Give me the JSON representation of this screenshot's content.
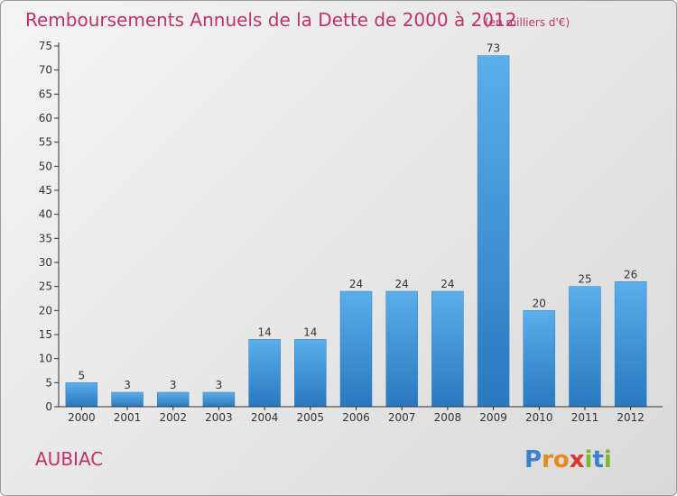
{
  "chart_data": {
    "type": "bar",
    "title": "Remboursements Annuels de la Dette de 2000 à 2012",
    "subtitle": "(en milliers d'€)",
    "categories": [
      "2000",
      "2001",
      "2002",
      "2003",
      "2004",
      "2005",
      "2006",
      "2007",
      "2008",
      "2009",
      "2010",
      "2011",
      "2012"
    ],
    "values": [
      5,
      3,
      3,
      3,
      14,
      14,
      24,
      24,
      24,
      73,
      20,
      25,
      26
    ],
    "ylim": [
      0,
      75
    ],
    "yticks": [
      0,
      5,
      10,
      15,
      20,
      25,
      30,
      35,
      40,
      45,
      50,
      55,
      60,
      65,
      70,
      75
    ],
    "grid": false,
    "legend": "none",
    "bar_color": "#4aa0de"
  },
  "footer": {
    "commune": "AUBIAC",
    "logo": "Proxiti",
    "logo_letters": [
      {
        "ch": "P",
        "color": "#3a7fd0"
      },
      {
        "ch": "r",
        "color": "#e88a1a"
      },
      {
        "ch": "o",
        "color": "#e88a1a"
      },
      {
        "ch": "x",
        "color": "#d8362d"
      },
      {
        "ch": "i",
        "color": "#7ab830"
      },
      {
        "ch": "t",
        "color": "#3a7fd0"
      },
      {
        "ch": "i",
        "color": "#7ab830"
      }
    ]
  }
}
